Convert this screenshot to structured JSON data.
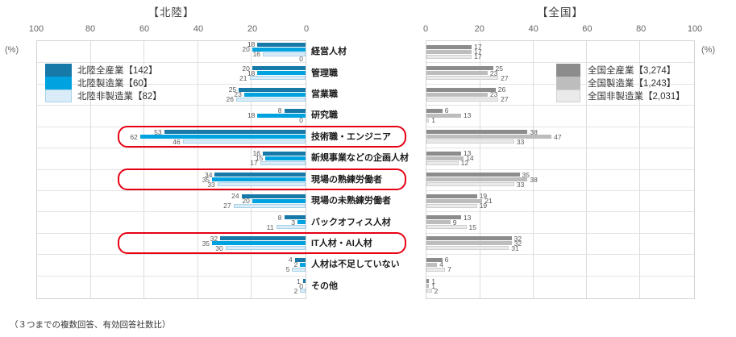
{
  "titles": {
    "left": "【北陸】",
    "right": "【全国】"
  },
  "percent_label": "(%)",
  "footnote": "（３つまでの複数回答、有効回答社数比）",
  "categories": [
    "経営人材",
    "管理職",
    "営業職",
    "研究職",
    "技術職・エンジニア",
    "新規事業などの企画人材",
    "現場の熟練労働者",
    "現場の未熟練労働者",
    "バックオフィス人材",
    "IT人材・AI人材",
    "人材は不足していない",
    "その他"
  ],
  "highlights": {
    "color": "#e60012",
    "category_indices": [
      4,
      6,
      9
    ],
    "labels": [
      "技術職・エンジニア",
      "現場の熟練労働者",
      "IT人材・AI人材"
    ]
  },
  "chart_data": [
    {
      "id": "hokuriku",
      "type": "bar",
      "orientation": "horizontal-rtl",
      "title": "【北陸】",
      "unit": "%",
      "xlim": [
        0,
        100
      ],
      "ticks": [
        "100",
        "80",
        "60",
        "40",
        "20",
        "0"
      ],
      "grid": true,
      "legend_position": "inside-top-left",
      "categories": [
        "経営人材",
        "管理職",
        "営業職",
        "研究職",
        "技術職・エンジニア",
        "新規事業などの企画人材",
        "現場の熟練労働者",
        "現場の未熟練労働者",
        "バックオフィス人材",
        "IT人材・AI人材",
        "人材は不足していない",
        "その他"
      ],
      "series": [
        {
          "name": "北陸全産業【142】",
          "color": "#1779a8",
          "values": [
            18,
            20,
            25,
            8,
            53,
            16,
            34,
            24,
            8,
            32,
            4,
            1
          ]
        },
        {
          "name": "北陸製造業【60】",
          "color": "#00a3e0",
          "values": [
            20,
            18,
            23,
            18,
            62,
            15,
            35,
            20,
            3,
            35,
            2,
            0
          ]
        },
        {
          "name": "北陸非製造業【82】",
          "color": "#d9ecf8",
          "border": "#a9d2e8",
          "values": [
            16,
            21,
            26,
            0,
            46,
            17,
            33,
            27,
            11,
            30,
            5,
            2
          ]
        }
      ],
      "extra_labels": [
        {
          "category_index": 0,
          "value": 0
        }
      ]
    },
    {
      "id": "zenkoku",
      "type": "bar",
      "orientation": "horizontal-ltr",
      "title": "【全国】",
      "unit": "%",
      "xlim": [
        0,
        100
      ],
      "ticks": [
        "0",
        "20",
        "40",
        "60",
        "80",
        "100"
      ],
      "grid": true,
      "legend_position": "inside-top-right",
      "categories": [
        "経営人材",
        "管理職",
        "営業職",
        "研究職",
        "技術職・エンジニア",
        "新規事業などの企画人材",
        "現場の熟練労働者",
        "現場の未熟練労働者",
        "バックオフィス人材",
        "IT人材・AI人材",
        "人材は不足していない",
        "その他"
      ],
      "series": [
        {
          "name": "全国全産業【3,274】",
          "color": "#8c8c8c",
          "values": [
            17,
            25,
            26,
            6,
            38,
            13,
            35,
            19,
            13,
            32,
            6,
            1
          ]
        },
        {
          "name": "全国製造業【1,243】",
          "color": "#bdbdbd",
          "values": [
            17,
            23,
            23,
            13,
            47,
            14,
            38,
            21,
            9,
            32,
            4,
            1
          ]
        },
        {
          "name": "全国非製造業【2,031】",
          "color": "#eaeaea",
          "border": "#cfcfcf",
          "values": [
            17,
            27,
            27,
            1,
            33,
            12,
            33,
            19,
            15,
            31,
            7,
            2
          ]
        }
      ],
      "extra_labels": []
    }
  ]
}
